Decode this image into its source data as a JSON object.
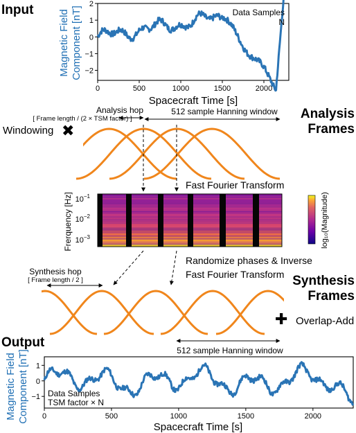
{
  "top_plot": {
    "section_label": "Input",
    "ylabel_line1": "Magnetic Field",
    "ylabel_line2": "Component [nT]",
    "xlabel": "Spacecraft Time [s]",
    "legend_line1": "Data Samples",
    "legend_line2": "N",
    "x_ticks": [
      "0",
      "500",
      "1000",
      "1500",
      "2000"
    ],
    "y_ticks": [
      "2",
      "1",
      "0",
      "−1",
      "−2"
    ],
    "line_color": "#2a74b5"
  },
  "analysis": {
    "title_line1": "Analysis",
    "title_line2": "Frames",
    "windowing_label": "Windowing",
    "multiply_symbol": "✖",
    "hop_label": "Analysis hop",
    "hop_bracket": "[ Frame length / (2 × TSM factor) ]",
    "window_label": "512 sample Hanning window",
    "fft_label": "Fast Fourier Transform",
    "window_color": "#f0861c"
  },
  "spectrogram": {
    "ylabel": "Frerquency [Hz]",
    "y_tick_bases": [
      "10",
      "10",
      "10"
    ],
    "y_tick_exps": [
      "−1",
      "−2",
      "−3"
    ],
    "colorbar_label": "log₁₀(Magnitude)"
  },
  "synthesis": {
    "title_line1": "Synthesis",
    "title_line2": "Frames",
    "hop_label": "Synthesis hop",
    "hop_bracket": "[ Frame length / 2 ]",
    "ifft_line1": "Randomize phases & Inverse",
    "ifft_line2": "Fast Fourier Transform",
    "plus_symbol": "✚",
    "overlap_label": "Overlap-Add",
    "window_label": "512 sample Hanning window"
  },
  "bottom_plot": {
    "section_label": "Output",
    "ylabel_line1": "Magnetic Field",
    "ylabel_line2": "Component [nT]",
    "xlabel": "Spacecraft Time [s]",
    "legend_line1": "Data Samples",
    "legend_line2": "TSM factor × N",
    "x_ticks": [
      "0",
      "500",
      "1000",
      "1500",
      "2000"
    ],
    "y_ticks": [
      "1",
      "0",
      "−1"
    ]
  }
}
